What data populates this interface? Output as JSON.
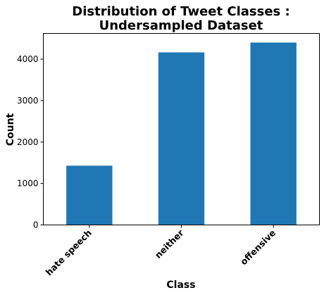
{
  "chart_data": {
    "type": "bar",
    "title_lines": [
      "Distribution of Tweet Classes :",
      "Undersampled Dataset"
    ],
    "xlabel": "Class",
    "ylabel": "Count",
    "categories": [
      "hate speech",
      "neither",
      "offensive"
    ],
    "values": [
      1430,
      4163,
      4400
    ],
    "ylim": [
      0,
      4620
    ],
    "yticks": [
      0,
      1000,
      2000,
      3000,
      4000
    ],
    "ytick_labels": [
      "0",
      "1000",
      "2000",
      "3000",
      "4000"
    ],
    "grid": false,
    "bar_color": "#1f77b4"
  }
}
